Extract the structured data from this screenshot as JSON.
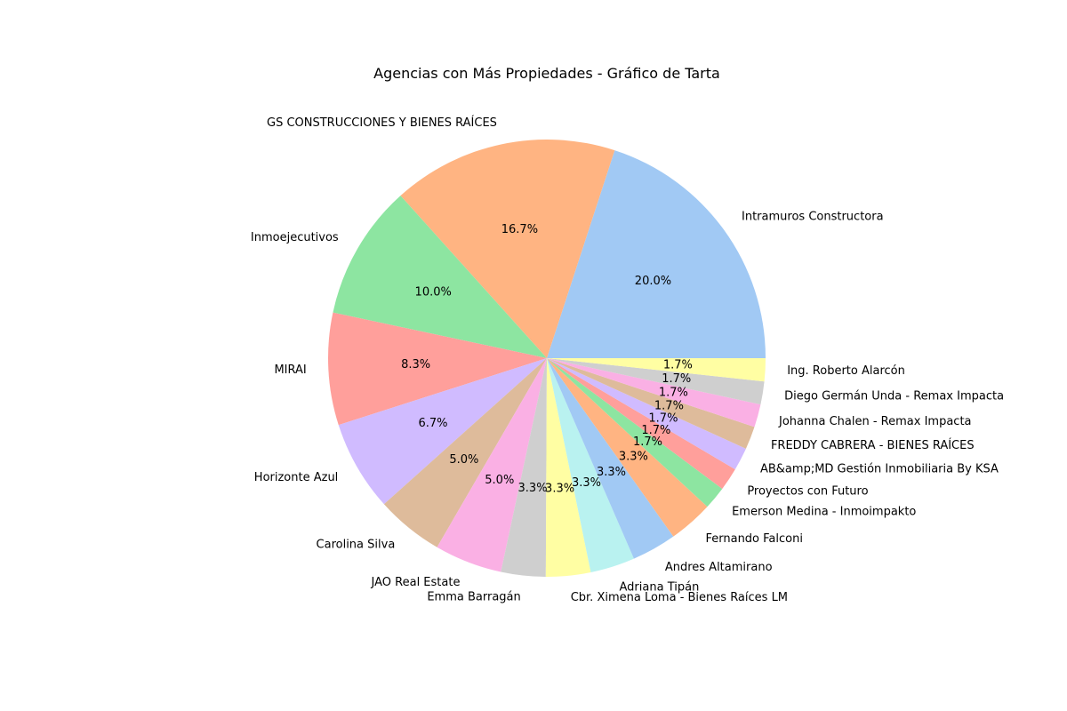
{
  "chart_data": {
    "type": "pie",
    "title": "Agencias con Más Propiedades - Gráfico de Tarta",
    "start_angle_deg": 0,
    "direction": "counterclockwise",
    "slices": [
      {
        "label": "Intramuros Constructora",
        "value": 20.0,
        "pct_text": "20.0%",
        "color": "#a1c9f4"
      },
      {
        "label": "GS CONSTRUCCIONES Y BIENES RAÍCES",
        "value": 16.7,
        "pct_text": "16.7%",
        "color": "#ffb482"
      },
      {
        "label": "Inmoejecutivos",
        "value": 10.0,
        "pct_text": "10.0%",
        "color": "#8de5a1"
      },
      {
        "label": "MIRAI",
        "value": 8.3,
        "pct_text": "8.3%",
        "color": "#ff9f9b"
      },
      {
        "label": "Horizonte Azul",
        "value": 6.7,
        "pct_text": "6.7%",
        "color": "#d0bbff"
      },
      {
        "label": "Carolina Silva",
        "value": 5.0,
        "pct_text": "5.0%",
        "color": "#debb9b"
      },
      {
        "label": "JAO Real Estate",
        "value": 5.0,
        "pct_text": "5.0%",
        "color": "#fab0e4"
      },
      {
        "label": "Emma Barragán",
        "value": 3.3,
        "pct_text": "3.3%",
        "color": "#cfcfcf"
      },
      {
        "label": "Cbr. Ximena Loma - Bienes Raíces LM",
        "value": 3.3,
        "pct_text": "3.3%",
        "color": "#fffea3"
      },
      {
        "label": "Adriana Tipán",
        "value": 3.3,
        "pct_text": "3.3%",
        "color": "#b9f2f0"
      },
      {
        "label": "Andres Altamirano",
        "value": 3.3,
        "pct_text": "3.3%",
        "color": "#a1c9f4"
      },
      {
        "label": "Fernando Falconi",
        "value": 3.3,
        "pct_text": "3.3%",
        "color": "#ffb482"
      },
      {
        "label": "Emerson Medina - Inmoimpakto",
        "value": 1.7,
        "pct_text": "1.7%",
        "color": "#8de5a1"
      },
      {
        "label": "Proyectos con Futuro",
        "value": 1.7,
        "pct_text": "1.7%",
        "color": "#ff9f9b"
      },
      {
        "label": "AB&amp;MD Gestión Inmobiliaria By KSA",
        "value": 1.7,
        "pct_text": "1.7%",
        "color": "#d0bbff"
      },
      {
        "label": "FREDDY CABRERA - BIENES RAÍCES",
        "value": 1.7,
        "pct_text": "1.7%",
        "color": "#debb9b"
      },
      {
        "label": "Johanna Chalen - Remax Impacta",
        "value": 1.7,
        "pct_text": "1.7%",
        "color": "#fab0e4"
      },
      {
        "label": "Diego Germán Unda - Remax Impacta",
        "value": 1.7,
        "pct_text": "1.7%",
        "color": "#cfcfcf"
      },
      {
        "label": "Ing. Roberto Alarcón",
        "value": 1.7,
        "pct_text": "1.7%",
        "color": "#fffea3"
      }
    ]
  }
}
